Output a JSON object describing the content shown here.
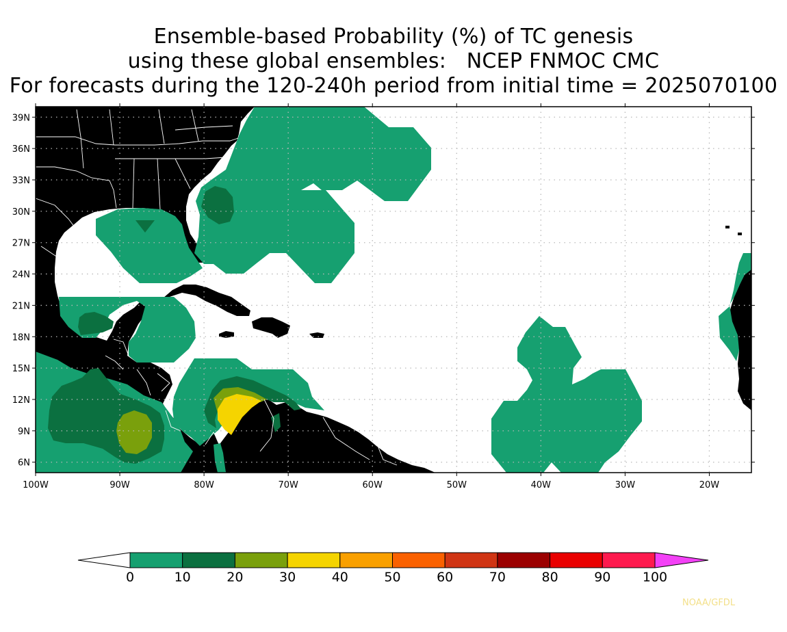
{
  "title": {
    "line1": "Ensemble-based Probability (%) of TC genesis",
    "line2": "using these global ensembles:   NCEP FNMOC CMC",
    "line3": "For forecasts during the 120-240h period from initial time = 2025070100"
  },
  "map": {
    "lon_range": [
      -100,
      -15
    ],
    "lat_range": [
      5,
      40
    ],
    "lon_ticks": [
      {
        "value": -100,
        "label": "100W"
      },
      {
        "value": -90,
        "label": "90W"
      },
      {
        "value": -80,
        "label": "80W"
      },
      {
        "value": -70,
        "label": "70W"
      },
      {
        "value": -60,
        "label": "60W"
      },
      {
        "value": -50,
        "label": "50W"
      },
      {
        "value": -40,
        "label": "40W"
      },
      {
        "value": -30,
        "label": "30W"
      },
      {
        "value": -20,
        "label": "20W"
      }
    ],
    "lat_ticks": [
      {
        "value": 6,
        "label": "6N"
      },
      {
        "value": 9,
        "label": "9N"
      },
      {
        "value": 12,
        "label": "12N"
      },
      {
        "value": 15,
        "label": "15N"
      },
      {
        "value": 18,
        "label": "18N"
      },
      {
        "value": 21,
        "label": "21N"
      },
      {
        "value": 24,
        "label": "24N"
      },
      {
        "value": 27,
        "label": "27N"
      },
      {
        "value": 30,
        "label": "30N"
      },
      {
        "value": 33,
        "label": "33N"
      },
      {
        "value": 36,
        "label": "36N"
      },
      {
        "value": 39,
        "label": "39N"
      }
    ],
    "colors": {
      "land": "#9b9b9b",
      "border": "#ffffff",
      "grid": "#b8b8b8"
    }
  },
  "colorbar": {
    "labels": [
      "0",
      "10",
      "20",
      "30",
      "40",
      "50",
      "60",
      "70",
      "80",
      "90",
      "100"
    ],
    "colors": [
      "#16a070",
      "#0b7040",
      "#7aa00c",
      "#f5d400",
      "#f9a000",
      "#fa6100",
      "#d03514",
      "#9b0000",
      "#e90000",
      "#fe1a4e"
    ],
    "under_color": "#ffffff",
    "over_color": "#f341f6"
  },
  "credit": "NOAA/GFDL"
}
